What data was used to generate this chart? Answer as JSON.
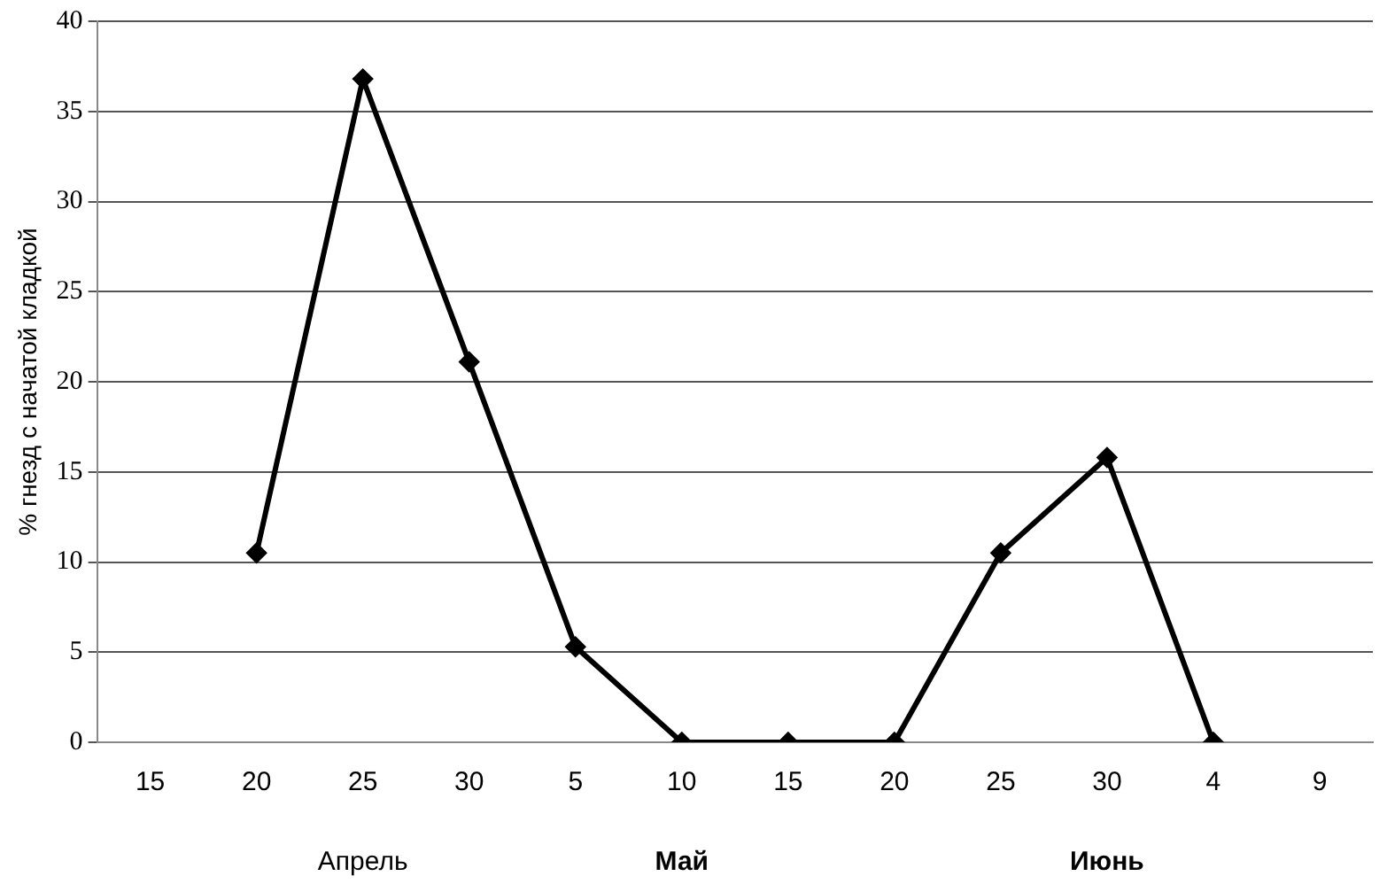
{
  "chart_data": {
    "type": "line",
    "ylabel": "% гнезд с начатой кладкой",
    "categories": [
      "15",
      "20",
      "25",
      "30",
      "5",
      "10",
      "15",
      "20",
      "25",
      "30",
      "4",
      "9"
    ],
    "series": [
      {
        "color": "#000000",
        "values": [
          null,
          10.5,
          36.8,
          21.1,
          5.3,
          0,
          0,
          0,
          10.5,
          15.8,
          0,
          null
        ]
      }
    ],
    "ylim": [
      0,
      40
    ],
    "yticks": [
      0,
      5,
      10,
      15,
      20,
      25,
      30,
      35,
      40
    ],
    "grid": "y",
    "legend": false,
    "marker": "diamond",
    "line_style": "solid",
    "annotations": [
      "Апрель",
      "Май",
      "Июнь"
    ]
  }
}
